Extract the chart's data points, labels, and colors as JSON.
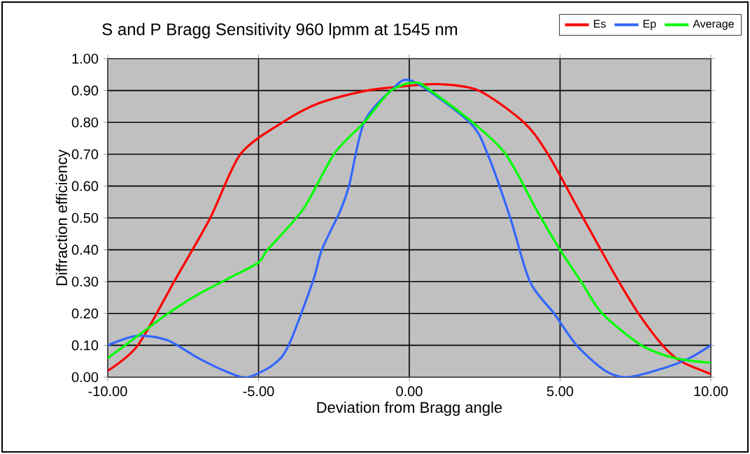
{
  "chart_data": {
    "type": "line",
    "title": "S and P Bragg Sensitivity  960 lpmm at 1545 nm",
    "xlabel": "Deviation from Bragg angle",
    "ylabel": "Diffraction efficiency",
    "series": [
      {
        "name": "Es",
        "color": "#ff0000",
        "x": [
          -10,
          -9,
          -7.8,
          -6.6,
          -5.6,
          -4.2,
          -3,
          -1.4,
          0,
          1,
          2.3,
          3.8,
          4.6,
          5.65,
          6.35,
          6.95,
          7.6,
          8.4,
          9,
          10
        ],
        "values": [
          0.02,
          0.1,
          0.3,
          0.5,
          0.7,
          0.8,
          0.86,
          0.9,
          0.915,
          0.92,
          0.9,
          0.8,
          0.7,
          0.52,
          0.4,
          0.3,
          0.2,
          0.1,
          0.05,
          0.01
        ]
      },
      {
        "name": "Ep",
        "color": "#3366ff",
        "x": [
          -10,
          -9,
          -8,
          -7,
          -6,
          -5.35,
          -4.5,
          -4,
          -3.2,
          -2.9,
          -2.3,
          -2,
          -1.5,
          -0.6,
          0.1,
          2,
          2.6,
          3.35,
          4,
          4.8,
          5.55,
          6.5,
          7.25,
          8.5,
          9.3,
          10
        ],
        "values": [
          0.1,
          0.13,
          0.115,
          0.06,
          0.015,
          0,
          0.04,
          0.1,
          0.3,
          0.4,
          0.52,
          0.6,
          0.8,
          0.9,
          0.93,
          0.8,
          0.7,
          0.5,
          0.3,
          0.2,
          0.1,
          0.02,
          0,
          0.03,
          0.06,
          0.1
        ]
      },
      {
        "name": "Average",
        "color": "#00ff00",
        "x": [
          -10,
          -9,
          -8,
          -7,
          -6,
          -5,
          -4.7,
          -3.5,
          -2.5,
          -1.5,
          -0.6,
          0.2,
          0.7,
          2.1,
          3.2,
          4.25,
          5,
          5.7,
          6.4,
          7.7,
          8.8,
          10
        ],
        "values": [
          0.06,
          0.13,
          0.2,
          0.26,
          0.31,
          0.36,
          0.4,
          0.53,
          0.7,
          0.8,
          0.9,
          0.925,
          0.9,
          0.8,
          0.7,
          0.52,
          0.4,
          0.3,
          0.2,
          0.1,
          0.06,
          0.045
        ]
      }
    ],
    "xlim": [
      -10,
      10
    ],
    "ylim": [
      0,
      1
    ],
    "xticks": [
      {
        "value": -10,
        "label": "-10.00"
      },
      {
        "value": -5,
        "label": "-5.00"
      },
      {
        "value": 0,
        "label": "0.00"
      },
      {
        "value": 5,
        "label": "5.00"
      },
      {
        "value": 10,
        "label": "10.00"
      }
    ],
    "yticks": [
      {
        "value": 0,
        "label": "0.00"
      },
      {
        "value": 0.1,
        "label": "0.10"
      },
      {
        "value": 0.2,
        "label": "0.20"
      },
      {
        "value": 0.3,
        "label": "0.30"
      },
      {
        "value": 0.4,
        "label": "0.40"
      },
      {
        "value": 0.5,
        "label": "0.50"
      },
      {
        "value": 0.6,
        "label": "0.60"
      },
      {
        "value": 0.7,
        "label": "0.70"
      },
      {
        "value": 0.8,
        "label": "0.80"
      },
      {
        "value": 0.9,
        "label": "0.90"
      },
      {
        "value": 1,
        "label": "1.00"
      }
    ],
    "grid": true,
    "legend": "top right",
    "marker": "none",
    "line_style": "solid"
  }
}
